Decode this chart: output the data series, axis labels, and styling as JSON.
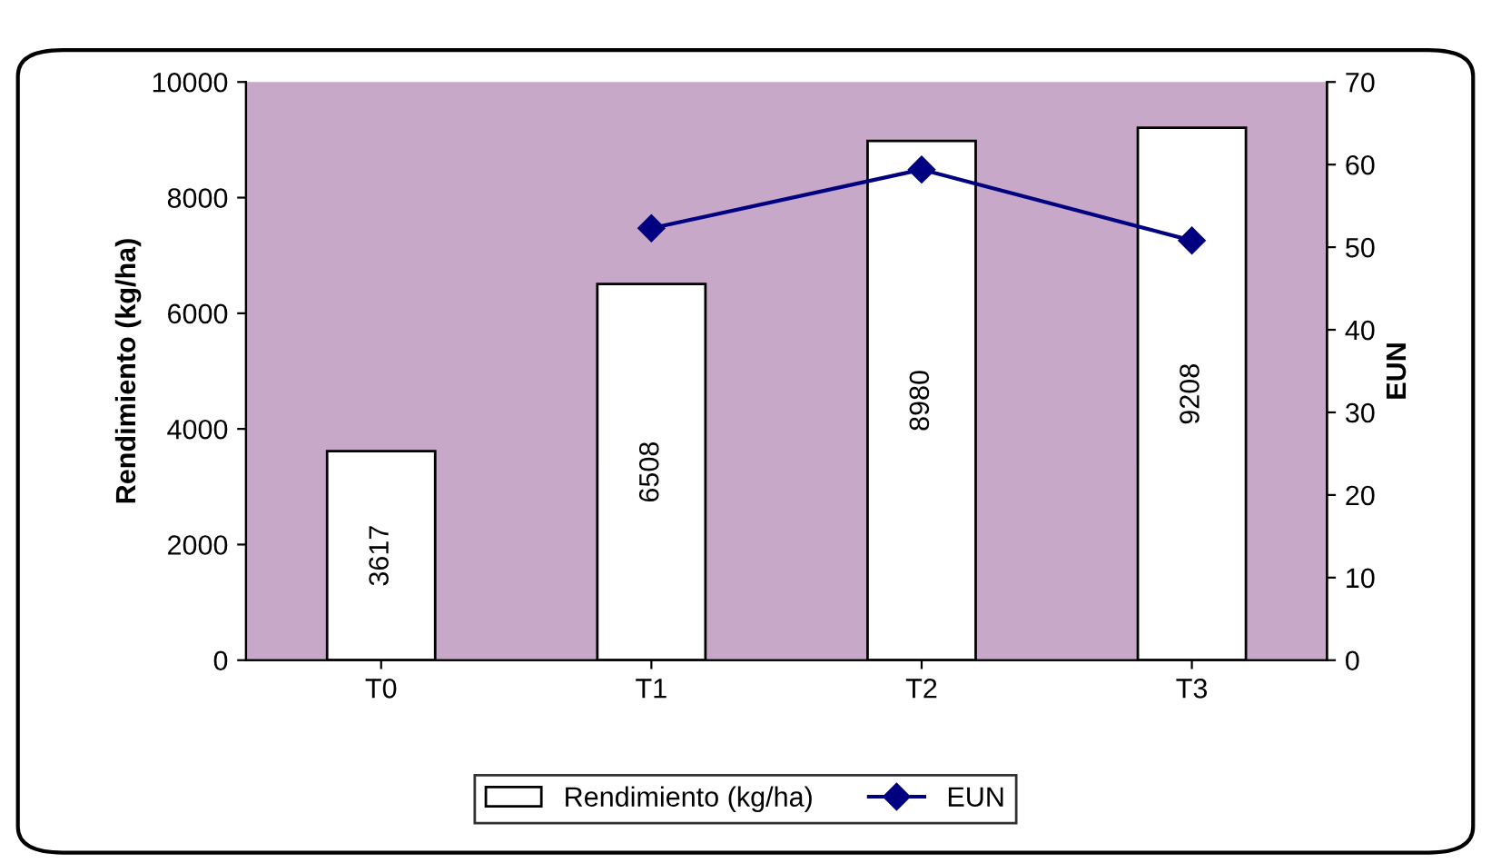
{
  "chart_data": {
    "type": "bar",
    "categories": [
      "T0",
      "T1",
      "T2",
      "T3"
    ],
    "ylabel": "Rendimiento (kg/ha)",
    "y2label": "EUN",
    "ylim": [
      0,
      10000
    ],
    "yticks": [
      0,
      2000,
      4000,
      6000,
      8000,
      10000
    ],
    "y2lim": [
      0,
      70
    ],
    "y2ticks": [
      0,
      10,
      20,
      30,
      40,
      50,
      60,
      70
    ],
    "series": [
      {
        "name": "Rendimiento (kg/ha)",
        "color": "#ffffff",
        "values": [
          3617,
          6508,
          8980,
          9208
        ],
        "value_labels": [
          "3617",
          "6508",
          "8980",
          "9208"
        ]
      },
      {
        "name": "EUN",
        "type": "line",
        "axis": "y2",
        "color": "#000080",
        "marker": "diamond",
        "values": [
          null,
          52.3,
          59.4,
          50.8
        ]
      }
    ],
    "grid": false,
    "legend": "bottom"
  }
}
